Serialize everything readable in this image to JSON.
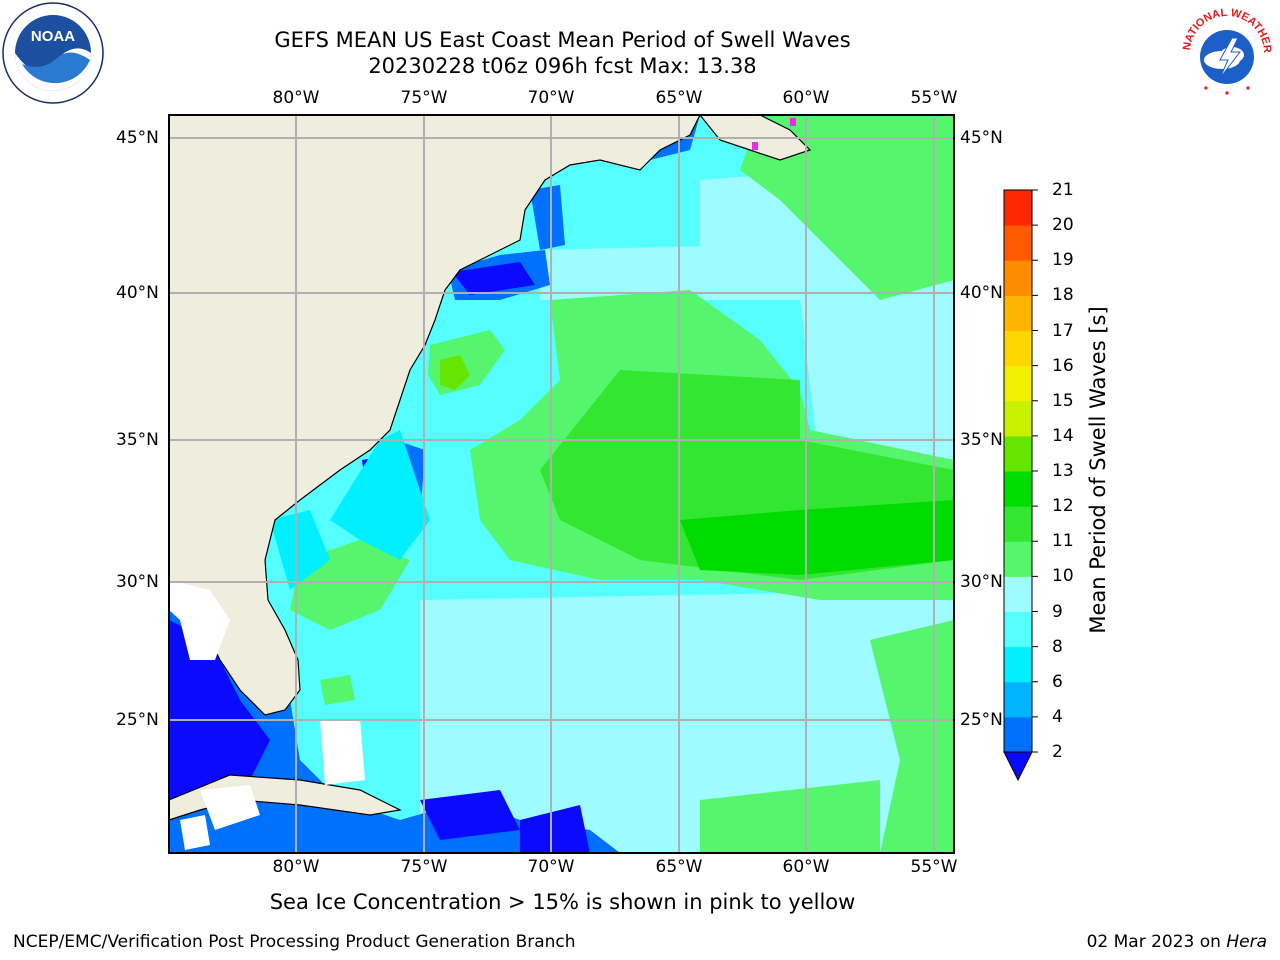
{
  "title": {
    "line1": "GEFS MEAN US East Coast Mean Period of Swell Waves",
    "line2": "20230228 t06z 096h fcst   Max: 13.38"
  },
  "lon_labels": [
    "80°W",
    "75°W",
    "70°W",
    "65°W",
    "60°W",
    "55°W"
  ],
  "lat_labels": [
    "45°N",
    "40°N",
    "35°N",
    "30°N",
    "25°N"
  ],
  "colorbar": {
    "title": "Mean Period of Swell Waves [s]",
    "ticks": [
      "2",
      "4",
      "6",
      "8",
      "9",
      "10",
      "11",
      "12",
      "13",
      "14",
      "15",
      "16",
      "17",
      "18",
      "19",
      "20",
      "21"
    ],
    "colors": [
      "#0070ff",
      "#00b4ff",
      "#00f0ff",
      "#55ffff",
      "#9efbff",
      "#55f56e",
      "#32e632",
      "#00dc00",
      "#64e600",
      "#c8f000",
      "#f0f000",
      "#ffd700",
      "#ffb400",
      "#ff8c00",
      "#ff5a00",
      "#ff2800",
      "#ff0000"
    ],
    "under_color": "#0a0aff"
  },
  "note": "Sea Ice Concentration > 15% is shown in pink to yellow",
  "footer": {
    "left": "NCEP/EMC/Verification Post Processing Product Generation Branch",
    "right_date": "02 Mar 2023 on ",
    "right_host": "Hera"
  },
  "logos": {
    "noaa": "NOAA",
    "nws": "NATIONAL WEATHER SERVICE"
  }
}
